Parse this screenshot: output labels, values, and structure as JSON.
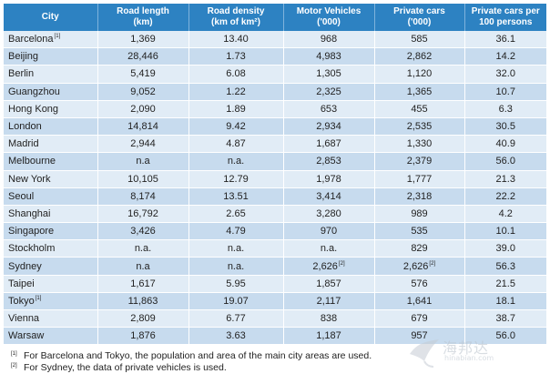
{
  "headers": [
    "City",
    "Road length\n(km)",
    "Road density\n(km of km²)",
    "Motor Vehicles\n('000)",
    "Private cars\n('000)",
    "Private cars per\n100 persons"
  ],
  "rows": [
    {
      "city": "Barcelona",
      "city_fn": "1",
      "road_length": "1,369",
      "road_density": "13.40",
      "motor_vehicles": "968",
      "mv_fn": "",
      "private_cars": "585",
      "pc_fn": "",
      "per100": "36.1"
    },
    {
      "city": "Beijing",
      "city_fn": "",
      "road_length": "28,446",
      "road_density": "1.73",
      "motor_vehicles": "4,983",
      "mv_fn": "",
      "private_cars": "2,862",
      "pc_fn": "",
      "per100": "14.2"
    },
    {
      "city": "Berlin",
      "city_fn": "",
      "road_length": "5,419",
      "road_density": "6.08",
      "motor_vehicles": "1,305",
      "mv_fn": "",
      "private_cars": "1,120",
      "pc_fn": "",
      "per100": "32.0"
    },
    {
      "city": "Guangzhou",
      "city_fn": "",
      "road_length": "9,052",
      "road_density": "1.22",
      "motor_vehicles": "2,325",
      "mv_fn": "",
      "private_cars": "1,365",
      "pc_fn": "",
      "per100": "10.7"
    },
    {
      "city": "Hong Kong",
      "city_fn": "",
      "road_length": "2,090",
      "road_density": "1.89",
      "motor_vehicles": "653",
      "mv_fn": "",
      "private_cars": "455",
      "pc_fn": "",
      "per100": "6.3"
    },
    {
      "city": "London",
      "city_fn": "",
      "road_length": "14,814",
      "road_density": "9.42",
      "motor_vehicles": "2,934",
      "mv_fn": "",
      "private_cars": "2,535",
      "pc_fn": "",
      "per100": "30.5"
    },
    {
      "city": "Madrid",
      "city_fn": "",
      "road_length": "2,944",
      "road_density": "4.87",
      "motor_vehicles": "1,687",
      "mv_fn": "",
      "private_cars": "1,330",
      "pc_fn": "",
      "per100": "40.9"
    },
    {
      "city": "Melbourne",
      "city_fn": "",
      "road_length": "n.a",
      "road_density": "n.a.",
      "motor_vehicles": "2,853",
      "mv_fn": "",
      "private_cars": "2,379",
      "pc_fn": "",
      "per100": "56.0"
    },
    {
      "city": "New York",
      "city_fn": "",
      "road_length": "10,105",
      "road_density": "12.79",
      "motor_vehicles": "1,978",
      "mv_fn": "",
      "private_cars": "1,777",
      "pc_fn": "",
      "per100": "21.3"
    },
    {
      "city": "Seoul",
      "city_fn": "",
      "road_length": "8,174",
      "road_density": "13.51",
      "motor_vehicles": "3,414",
      "mv_fn": "",
      "private_cars": "2,318",
      "pc_fn": "",
      "per100": "22.2"
    },
    {
      "city": "Shanghai",
      "city_fn": "",
      "road_length": "16,792",
      "road_density": "2.65",
      "motor_vehicles": "3,280",
      "mv_fn": "",
      "private_cars": "989",
      "pc_fn": "",
      "per100": "4.2"
    },
    {
      "city": "Singapore",
      "city_fn": "",
      "road_length": "3,426",
      "road_density": "4.79",
      "motor_vehicles": "970",
      "mv_fn": "",
      "private_cars": "535",
      "pc_fn": "",
      "per100": "10.1"
    },
    {
      "city": "Stockholm",
      "city_fn": "",
      "road_length": "n.a.",
      "road_density": "n.a.",
      "motor_vehicles": "n.a.",
      "mv_fn": "",
      "private_cars": "829",
      "pc_fn": "",
      "per100": "39.0"
    },
    {
      "city": "Sydney",
      "city_fn": "",
      "road_length": "n.a",
      "road_density": "n.a.",
      "motor_vehicles": "2,626",
      "mv_fn": "2",
      "private_cars": "2,626",
      "pc_fn": "2",
      "per100": "56.3"
    },
    {
      "city": "Taipei",
      "city_fn": "",
      "road_length": "1,617",
      "road_density": "5.95",
      "motor_vehicles": "1,857",
      "mv_fn": "",
      "private_cars": "576",
      "pc_fn": "",
      "per100": "21.5"
    },
    {
      "city": "Tokyo",
      "city_fn": "1",
      "road_length": "11,863",
      "road_density": "19.07",
      "motor_vehicles": "2,117",
      "mv_fn": "",
      "private_cars": "1,641",
      "pc_fn": "",
      "per100": "18.1"
    },
    {
      "city": "Vienna",
      "city_fn": "",
      "road_length": "2,809",
      "road_density": "6.77",
      "motor_vehicles": "838",
      "mv_fn": "",
      "private_cars": "679",
      "pc_fn": "",
      "per100": "38.7"
    },
    {
      "city": "Warsaw",
      "city_fn": "",
      "road_length": "1,876",
      "road_density": "3.63",
      "motor_vehicles": "1,187",
      "mv_fn": "",
      "private_cars": "957",
      "pc_fn": "",
      "per100": "56.0"
    }
  ],
  "footnotes": [
    {
      "mark": "[1]",
      "text": "For Barcelona and Tokyo, the population and area of the main city areas are used."
    },
    {
      "mark": "[2]",
      "text": "For Sydney, the data of private vehicles is used."
    }
  ],
  "watermark": {
    "text": "海邦达",
    "sub": "hinabian.com",
    "color": "#b9c2cc"
  },
  "colors": {
    "header_bg": "#2d82c2",
    "row_light": "#e1ecf6",
    "row_dark": "#c7dbee"
  }
}
